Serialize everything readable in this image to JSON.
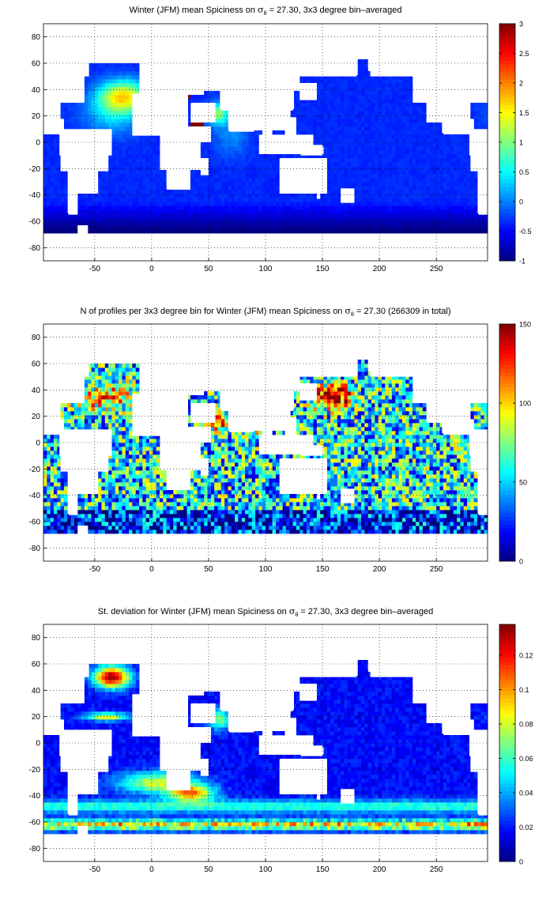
{
  "chart_data": [
    {
      "type": "heatmap",
      "title": "Winter (JFM) mean Spiciness on σθ = 27.30, 3x3 degree bin–averaged",
      "title_parts": {
        "pre": "Winter (JFM) mean Spiciness on ",
        "sym": "σ",
        "sub": "θ",
        "post": " = 27.30, 3x3 degree bin–averaged"
      },
      "xlim": [
        -95,
        295
      ],
      "ylim": [
        -90,
        90
      ],
      "xticks": [
        -50,
        0,
        50,
        100,
        150,
        200,
        250
      ],
      "yticks": [
        80,
        60,
        40,
        20,
        0,
        -20,
        -40,
        -60,
        -80
      ],
      "grid": true,
      "colorbar": {
        "range": [
          -1,
          3
        ],
        "ticks": [
          3,
          2.5,
          2,
          1.5,
          1,
          0.5,
          0,
          -0.5,
          -1
        ],
        "colormap": "jet"
      },
      "field": "spiciness"
    },
    {
      "type": "heatmap",
      "title": "N of profiles per 3x3 degree bin for Winter (JFM) mean Spiciness on σθ = 27.30 (266309 in total)",
      "title_parts": {
        "pre": "N of profiles per 3x3 degree bin for Winter (JFM) mean Spiciness on ",
        "sym": "σ",
        "sub": "θ",
        "post": " = 27.30 (266309 in total)"
      },
      "xlim": [
        -95,
        295
      ],
      "ylim": [
        -90,
        90
      ],
      "xticks": [
        -50,
        0,
        50,
        100,
        150,
        200,
        250
      ],
      "yticks": [
        80,
        60,
        40,
        20,
        0,
        -20,
        -40,
        -60,
        -80
      ],
      "grid": true,
      "colorbar": {
        "range": [
          0,
          150
        ],
        "ticks": [
          150,
          100,
          50,
          0
        ],
        "colormap": "jet"
      },
      "field": "count"
    },
    {
      "type": "heatmap",
      "title": "St. deviation for Winter (JFM) mean Spiciness on σθ = 27.30, 3x3 degree bin–averaged",
      "title_parts": {
        "pre": "St. deviation for Winter (JFM) mean Spiciness on ",
        "sym": "σ",
        "sub": "θ",
        "post": " = 27.30, 3x3 degree bin–averaged"
      },
      "xlim": [
        -95,
        295
      ],
      "ylim": [
        -90,
        90
      ],
      "xticks": [
        -50,
        0,
        50,
        100,
        150,
        200,
        250
      ],
      "yticks": [
        80,
        60,
        40,
        20,
        0,
        -20,
        -40,
        -60,
        -80
      ],
      "grid": true,
      "colorbar": {
        "range": [
          0,
          0.138
        ],
        "ticks": [
          0.12,
          0.1,
          0.08,
          0.06,
          0.04,
          0.02,
          0
        ],
        "colormap": "jet"
      },
      "field": "stdev"
    }
  ]
}
